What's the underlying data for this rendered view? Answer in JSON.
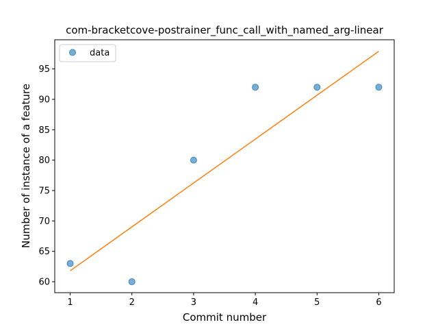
{
  "chart_data": {
    "type": "scatter",
    "title": "com-bracketcove-postrainer_func_call_with_named_arg-linear",
    "xlabel": "Commit number",
    "ylabel": "Number of instance of a feature",
    "xlim": [
      0.75,
      6.25
    ],
    "ylim": [
      58.2,
      99.8
    ],
    "xticks": [
      1,
      2,
      3,
      4,
      5,
      6
    ],
    "yticks": [
      60,
      65,
      70,
      75,
      80,
      85,
      90,
      95
    ],
    "grid": false,
    "legend_position": "top-left",
    "series": [
      {
        "name": "data",
        "kind": "scatter",
        "color": "#1f77b4",
        "x": [
          1,
          2,
          3,
          4,
          5,
          6
        ],
        "y": [
          63,
          60,
          80,
          92,
          92,
          92
        ]
      },
      {
        "kind": "line",
        "color": "#ff7f0e",
        "x": [
          1,
          6
        ],
        "y": [
          61.8,
          97.9
        ]
      }
    ]
  }
}
